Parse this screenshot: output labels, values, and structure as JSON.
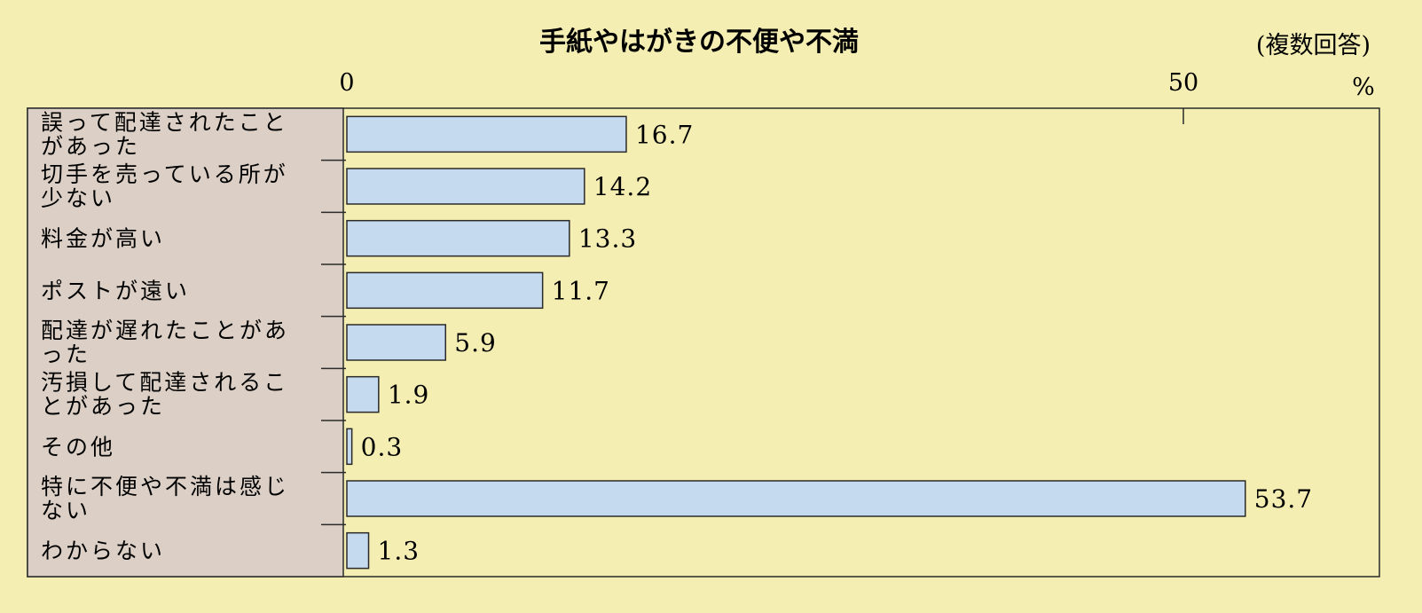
{
  "chart_data": {
    "type": "bar",
    "orientation": "horizontal",
    "title": "手紙やはがきの不便や不満",
    "note": "(複数回答)",
    "unit": "%",
    "x_ticks": [
      "0",
      "50"
    ],
    "xlim": [
      0,
      60
    ],
    "categories": [
      [
        "誤って配達されたこと",
        "があった"
      ],
      [
        "切手を売っている所が",
        "少ない"
      ],
      [
        "料金が高い"
      ],
      [
        "ポストが遠い"
      ],
      [
        "配達が遅れたことがあ",
        "った"
      ],
      [
        "汚損して配達されるこ",
        "とがあった"
      ],
      [
        "その他"
      ],
      [
        "特に不便や不満は感じ",
        "ない"
      ],
      [
        "わからない"
      ]
    ],
    "values": [
      16.7,
      14.2,
      13.3,
      11.7,
      5.9,
      1.9,
      0.3,
      53.7,
      1.3
    ],
    "value_labels": [
      "16.7",
      "14.2",
      "13.3",
      "11.7",
      "5.9",
      "1.9",
      "0.3",
      "53.7",
      "1.3"
    ],
    "grid": false,
    "legend": "none",
    "colors": {
      "background": "#f5eeb2",
      "label_panel": "#dcd0c6",
      "bar_fill": "#c5d9ef",
      "stroke": "#2a2a2a"
    }
  }
}
